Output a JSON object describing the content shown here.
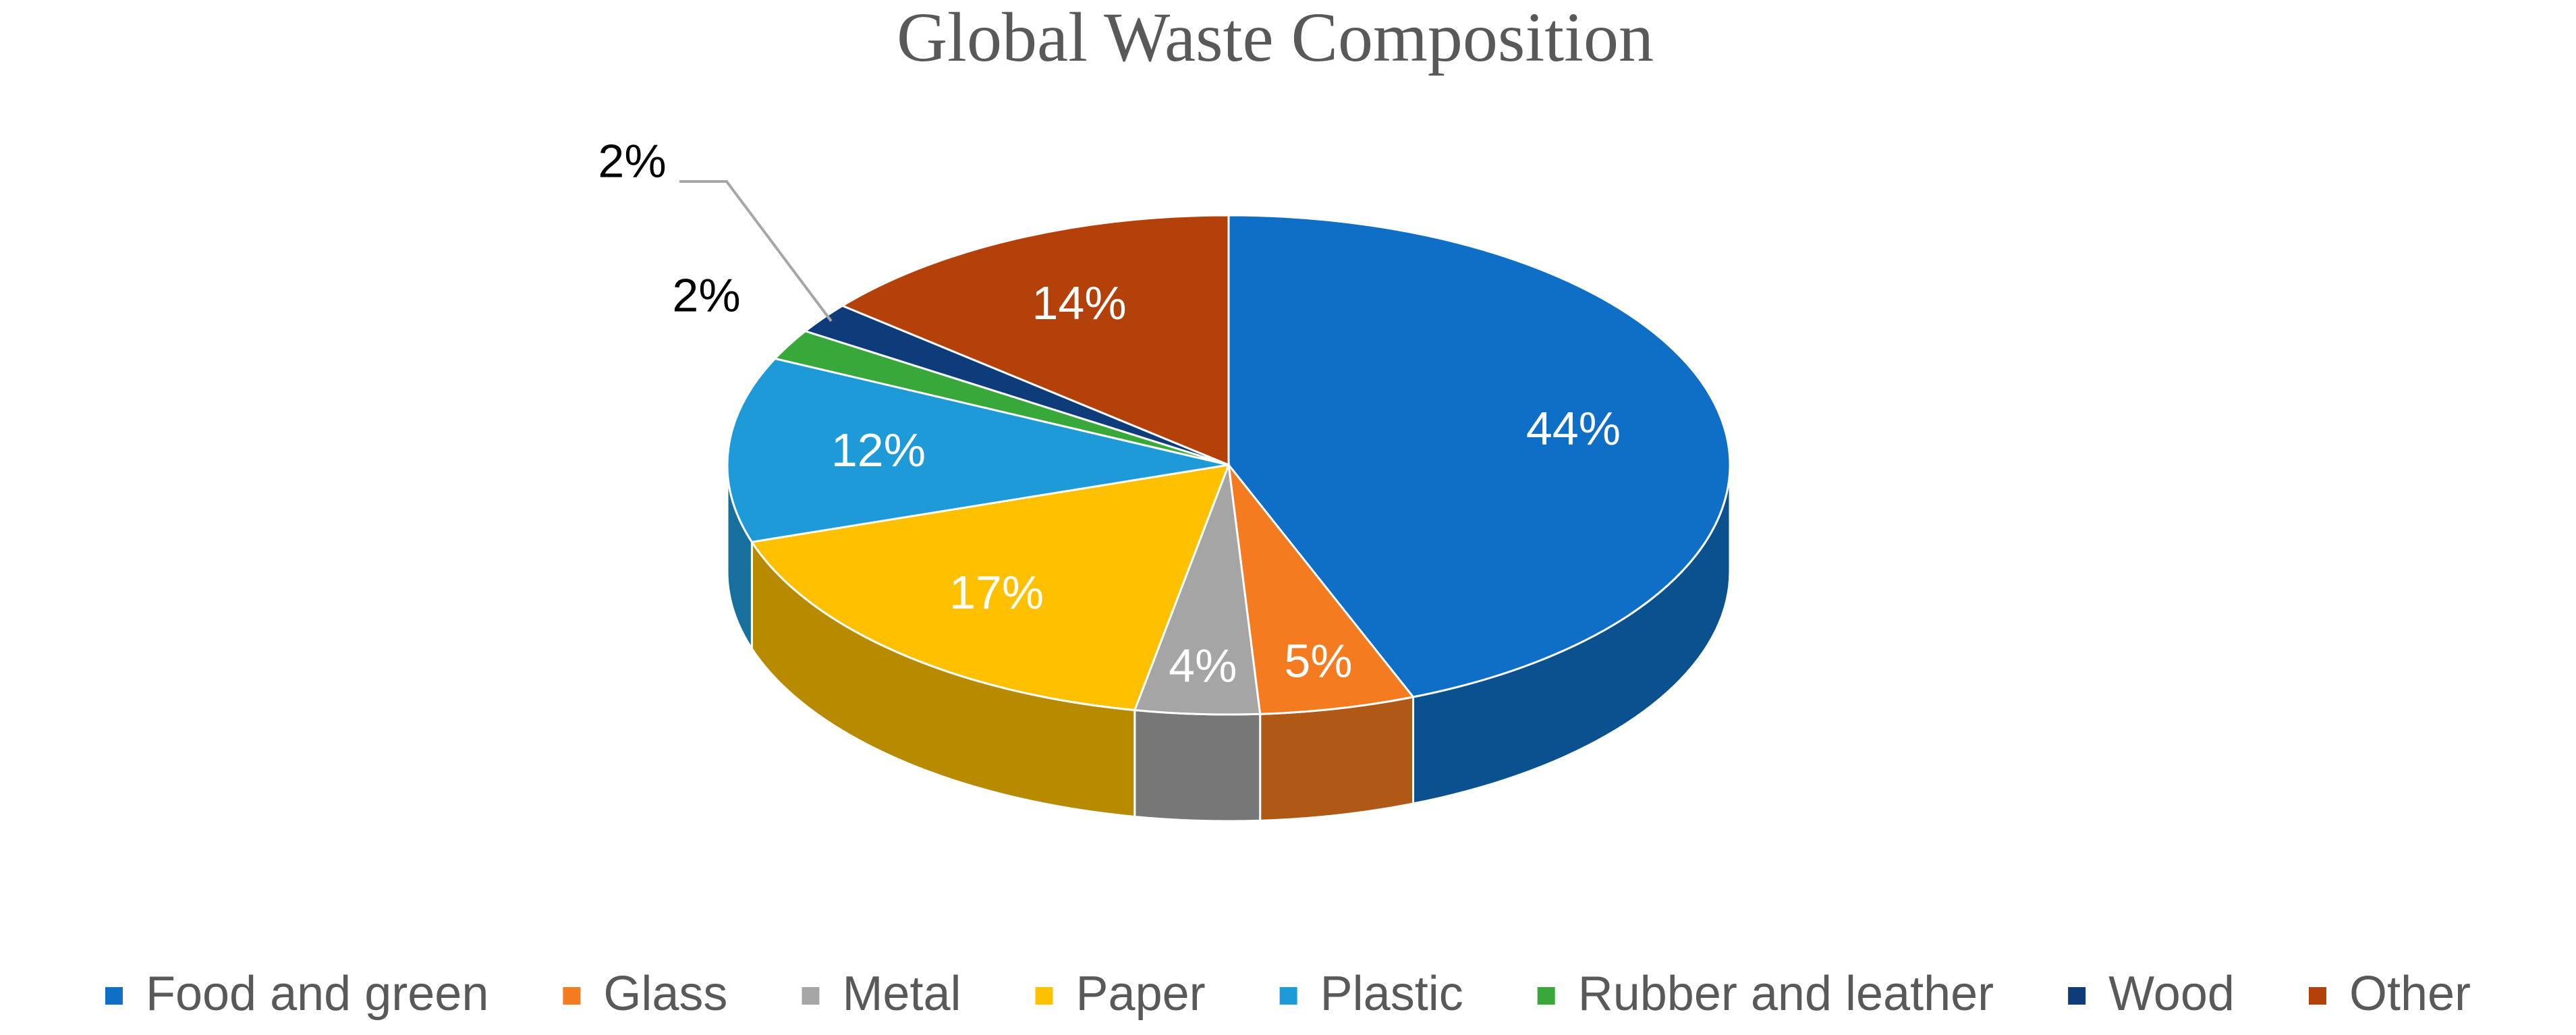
{
  "chart_data": {
    "type": "pie",
    "title": "Global Waste Composition",
    "categories": [
      "Food and green",
      "Glass",
      "Metal",
      "Paper",
      "Plastic",
      "Rubber and leather",
      "Wood",
      "Other"
    ],
    "values": [
      44,
      5,
      4,
      17,
      12,
      2,
      2,
      14
    ],
    "value_labels": [
      "44%",
      "5%",
      "4%",
      "17%",
      "12%",
      "2%",
      "2%",
      "14%"
    ],
    "colors": [
      "#0f6fc6",
      "#f47b20",
      "#a5a5a5",
      "#ffc000",
      "#1f9ad8",
      "#39a83a",
      "#0e3b7a",
      "#b5410a"
    ],
    "legend": "bottom"
  }
}
